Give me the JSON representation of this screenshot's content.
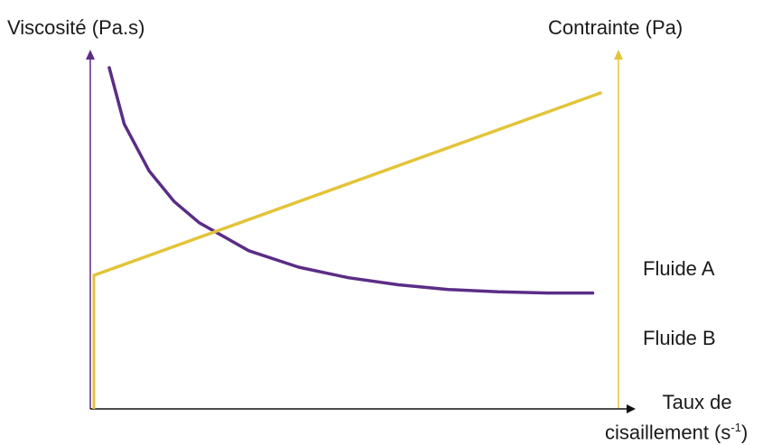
{
  "chart_data": {
    "type": "line",
    "y_left_label": "Viscosité (Pa.s)",
    "y_right_label": "Contrainte (Pa)",
    "x_label_line1": "Taux de",
    "x_label_line2_text": "cisaillement (s",
    "x_label_line2_sup": "-1",
    "x_label_line2_end": ")",
    "legend": [
      "Fluide A",
      "Fluide B"
    ],
    "grid": false,
    "colors": {
      "viscosity": "#5b2d86",
      "stress": "#e3c43a",
      "axis": "#111111"
    },
    "series": [
      {
        "axis": "left",
        "color": "#5b2d86",
        "x": [
          0.02,
          0.05,
          0.1,
          0.15,
          0.2,
          0.3,
          0.4,
          0.5,
          0.6,
          0.7,
          0.8,
          0.9,
          0.99
        ],
        "y": [
          1.0,
          0.76,
          0.56,
          0.43,
          0.34,
          0.22,
          0.15,
          0.105,
          0.075,
          0.055,
          0.045,
          0.04,
          0.04
        ]
      },
      {
        "axis": "right",
        "color": "#e3c43a",
        "x": [
          0.0,
          1.0
        ],
        "y": [
          0.42,
          1.0
        ]
      }
    ]
  }
}
